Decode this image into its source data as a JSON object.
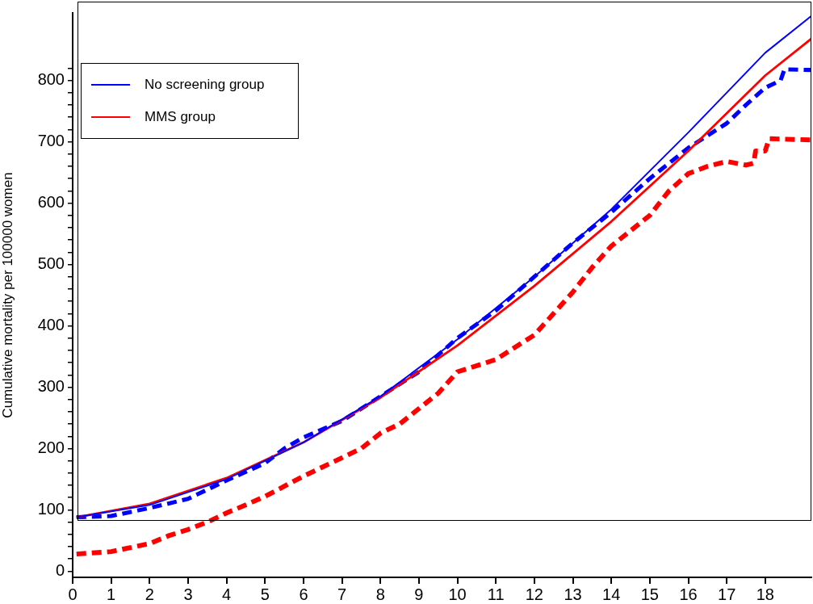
{
  "chart_data": {
    "type": "line",
    "ylabel": "Cumulative mortality per 100000 women",
    "xlim": [
      0,
      19.2
    ],
    "xticks": [
      0,
      1,
      2,
      3,
      4,
      5,
      6,
      7,
      8,
      9,
      10,
      11,
      12,
      13,
      14,
      15,
      16,
      17,
      18
    ],
    "ylim": [
      -10,
      910
    ],
    "yticks": [
      0,
      {
        "value": 20,
        "label": null
      },
      {
        "value": 40,
        "label": null
      },
      {
        "value": 60,
        "label": null
      },
      {
        "value": 80,
        "label": null
      },
      100,
      {
        "value": 120,
        "label": null
      },
      {
        "value": 140,
        "label": null
      },
      {
        "value": 160,
        "label": null
      },
      {
        "value": 180,
        "label": null
      },
      200,
      {
        "value": 220,
        "label": null
      },
      {
        "value": 240,
        "label": null
      },
      {
        "value": 260,
        "label": null
      },
      {
        "value": 280,
        "label": null
      },
      300,
      {
        "value": 320,
        "label": null
      },
      {
        "value": 340,
        "label": null
      },
      {
        "value": 360,
        "label": null
      },
      {
        "value": 380,
        "label": null
      },
      400,
      {
        "value": 420,
        "label": null
      },
      {
        "value": 440,
        "label": null
      },
      {
        "value": 460,
        "label": null
      },
      {
        "value": 480,
        "label": null
      },
      500,
      {
        "value": 520,
        "label": null
      },
      {
        "value": 540,
        "label": null
      },
      {
        "value": 560,
        "label": null
      },
      {
        "value": 580,
        "label": null
      },
      600,
      {
        "value": 620,
        "label": null
      },
      {
        "value": 640,
        "label": null
      },
      {
        "value": 660,
        "label": null
      },
      {
        "value": 680,
        "label": null
      },
      700,
      {
        "value": 720,
        "label": null
      },
      {
        "value": 740,
        "label": null
      },
      {
        "value": 760,
        "label": null
      },
      {
        "value": 780,
        "label": null
      },
      800,
      {
        "value": 820,
        "label": null
      }
    ],
    "grid": false,
    "legend": "top left",
    "marker": "none",
    "series": [
      {
        "name": "No screening group",
        "color": "#0000ff",
        "line_style": "solid",
        "x": [
          0.1,
          2,
          4,
          6,
          8,
          10,
          12,
          14,
          16,
          18,
          19.2
        ],
        "values": [
          88,
          108,
          150,
          210,
          285,
          378,
          480,
          590,
          715,
          845,
          905
        ]
      },
      {
        "name": "MMS group",
        "color": "#ff0000",
        "line_style": "solid",
        "x": [
          0.1,
          2,
          4,
          6,
          8,
          10,
          12,
          14,
          16,
          18,
          19.2
        ],
        "values": [
          88,
          110,
          152,
          210,
          283,
          368,
          465,
          570,
          685,
          808,
          868
        ]
      },
      {
        "color": "#0000ff",
        "line_style": "dashed",
        "x": [
          0.1,
          1,
          2,
          3,
          4,
          5,
          5.5,
          6,
          7,
          8,
          9,
          10,
          11,
          12,
          13,
          14,
          15,
          16,
          17,
          17.5,
          18,
          18.4,
          18.5,
          19.2
        ],
        "values": [
          88,
          90,
          103,
          118,
          148,
          176,
          200,
          218,
          245,
          285,
          325,
          380,
          425,
          480,
          535,
          585,
          640,
          690,
          730,
          760,
          788,
          800,
          818,
          817
        ]
      },
      {
        "color": "#ff0000",
        "line_style": "dashed",
        "x": [
          0.1,
          1,
          2,
          2.5,
          3,
          3.5,
          4,
          4.5,
          5,
          6,
          7,
          7.5,
          8,
          8.5,
          9,
          9.5,
          10,
          11,
          12,
          12.5,
          13,
          13.5,
          14,
          14.5,
          15,
          15.5,
          16,
          16.5,
          17,
          17.5,
          17.7,
          17.75,
          18,
          18.1,
          19.2
        ],
        "values": [
          28,
          32,
          45,
          58,
          68,
          80,
          95,
          108,
          122,
          155,
          185,
          200,
          225,
          240,
          265,
          290,
          325,
          345,
          385,
          420,
          455,
          495,
          530,
          555,
          580,
          620,
          648,
          660,
          668,
          662,
          665,
          685,
          685,
          705,
          703
        ]
      }
    ]
  }
}
